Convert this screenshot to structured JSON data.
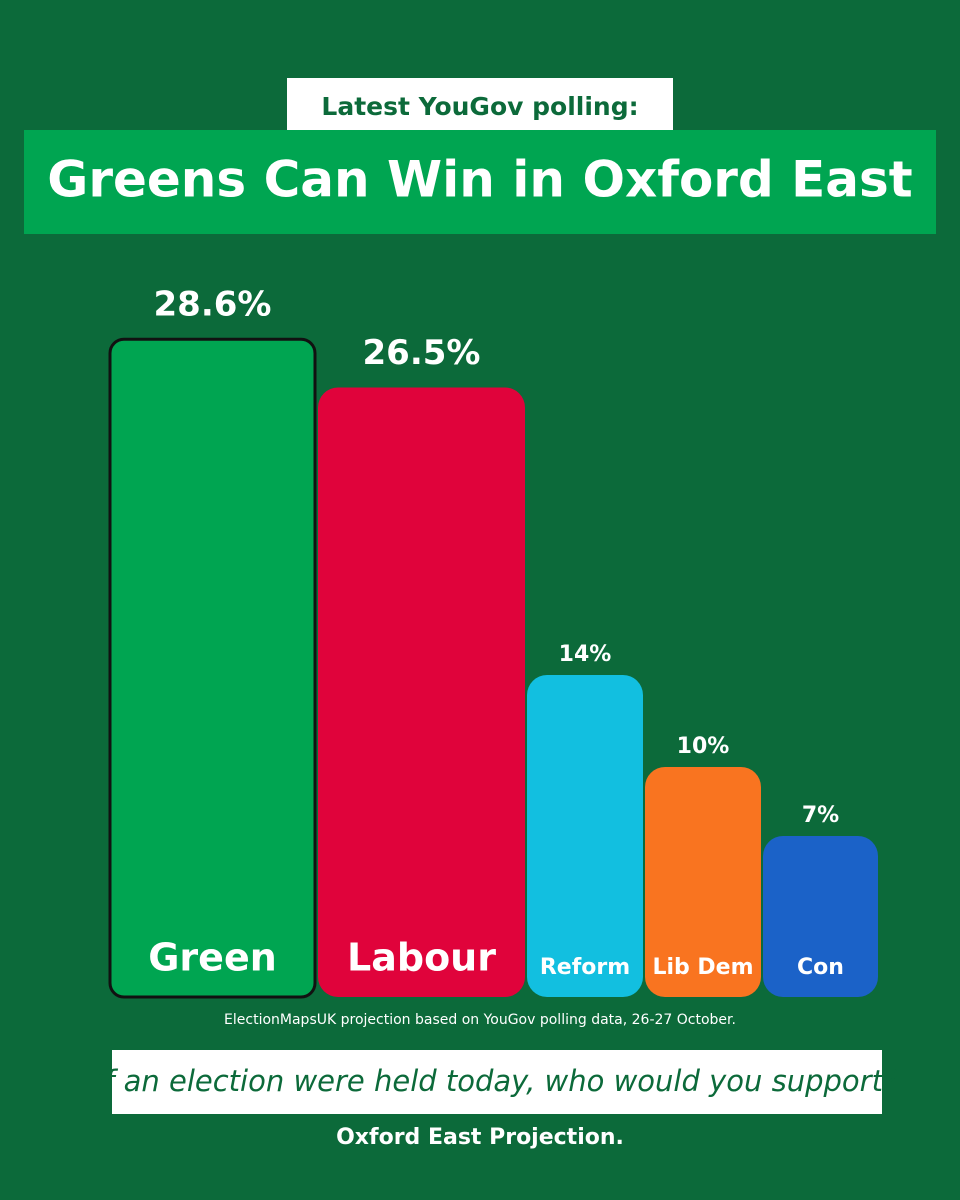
{
  "chart_data": {
    "type": "bar",
    "kicker": "Latest YouGov polling:",
    "title": "Greens Can Win in Oxford East",
    "categories": [
      "Green",
      "Labour",
      "Reform",
      "Lib Dem",
      "Con"
    ],
    "values": [
      28.6,
      26.5,
      14,
      10,
      7
    ],
    "value_labels": [
      "28.6%",
      "26.5%",
      "14%",
      "10%",
      "7%"
    ],
    "colors": [
      "#00a551",
      "#e0033b",
      "#12bfe0",
      "#f97420",
      "#1b62c8"
    ],
    "source": "ElectionMapsUK projection based on YouGov polling data, 26-27 October.",
    "question": "If an election were held today, who would you support?",
    "footer": "Oxford East Projection."
  }
}
